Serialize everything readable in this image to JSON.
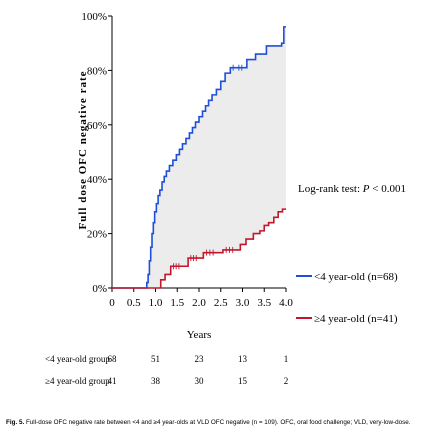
{
  "chart_data": {
    "type": "line",
    "step": true,
    "title": "",
    "xlabel": "Years",
    "ylabel": "Full dose OFC negative rate",
    "xlim": [
      0,
      4.0
    ],
    "ylim": [
      0,
      100
    ],
    "x_ticks": [
      "0",
      "0.5",
      "1.0",
      "1.5",
      "2.0",
      "2.5",
      "3.0",
      "3.5",
      "4.0"
    ],
    "y_ticks": [
      "0%",
      "20%",
      "40%",
      "60%",
      "80%",
      "100%"
    ],
    "shade_between_series": true,
    "shade_color": "#ececec",
    "annotation": {
      "prefix": "Log-rank test: ",
      "p_symbol": "P",
      "suffix": " < 0.001"
    },
    "series": [
      {
        "name": "<4 year-old (n=68)",
        "color": "#1f4fd8",
        "points": [
          [
            0,
            0
          ],
          [
            0.78,
            0
          ],
          [
            0.8,
            2
          ],
          [
            0.83,
            5
          ],
          [
            0.86,
            10
          ],
          [
            0.89,
            15
          ],
          [
            0.92,
            20
          ],
          [
            0.95,
            24
          ],
          [
            0.98,
            28
          ],
          [
            1.02,
            31
          ],
          [
            1.06,
            34
          ],
          [
            1.1,
            36
          ],
          [
            1.15,
            39
          ],
          [
            1.2,
            41
          ],
          [
            1.25,
            43
          ],
          [
            1.32,
            45
          ],
          [
            1.4,
            47
          ],
          [
            1.48,
            49
          ],
          [
            1.55,
            51
          ],
          [
            1.62,
            53
          ],
          [
            1.7,
            55
          ],
          [
            1.78,
            57
          ],
          [
            1.85,
            59
          ],
          [
            1.92,
            61
          ],
          [
            2.0,
            63
          ],
          [
            2.08,
            65
          ],
          [
            2.15,
            67
          ],
          [
            2.22,
            69
          ],
          [
            2.3,
            71
          ],
          [
            2.4,
            73
          ],
          [
            2.5,
            76
          ],
          [
            2.6,
            79
          ],
          [
            2.72,
            81
          ],
          [
            2.85,
            81
          ],
          [
            3.05,
            81
          ],
          [
            3.1,
            84
          ],
          [
            3.3,
            86
          ],
          [
            3.55,
            89
          ],
          [
            3.9,
            90
          ],
          [
            3.95,
            96
          ],
          [
            4.0,
            96
          ]
        ]
      },
      {
        "name": "≥4 year-old (n=41)",
        "color": "#c4162a",
        "points": [
          [
            0,
            0
          ],
          [
            0.8,
            0
          ],
          [
            1.05,
            0
          ],
          [
            1.12,
            3
          ],
          [
            1.22,
            5
          ],
          [
            1.35,
            8
          ],
          [
            1.6,
            8
          ],
          [
            1.75,
            11
          ],
          [
            2.0,
            11
          ],
          [
            2.1,
            13
          ],
          [
            2.4,
            13
          ],
          [
            2.55,
            14
          ],
          [
            2.85,
            14
          ],
          [
            2.95,
            16
          ],
          [
            3.08,
            18
          ],
          [
            3.25,
            20
          ],
          [
            3.4,
            21
          ],
          [
            3.5,
            23
          ],
          [
            3.6,
            24
          ],
          [
            3.72,
            26
          ],
          [
            3.82,
            28
          ],
          [
            3.92,
            29
          ],
          [
            4.0,
            29
          ]
        ]
      }
    ]
  },
  "risk_table": {
    "rows": [
      {
        "label": "<4 year-old group",
        "values": [
          "68",
          "51",
          "23",
          "13",
          "1"
        ]
      },
      {
        "label": "≥4 year-old group",
        "values": [
          "41",
          "38",
          "30",
          "15",
          "2"
        ]
      }
    ],
    "at_years": [
      0,
      1,
      2,
      3,
      4
    ]
  },
  "caption": {
    "label": "Fig. 5.",
    "text": " Full-dose OFC negative rate between <4 and ≥4 year-olds at VLD OFC negative (n = 109). OFC, oral food challenge; VLD, very-low-dose."
  }
}
